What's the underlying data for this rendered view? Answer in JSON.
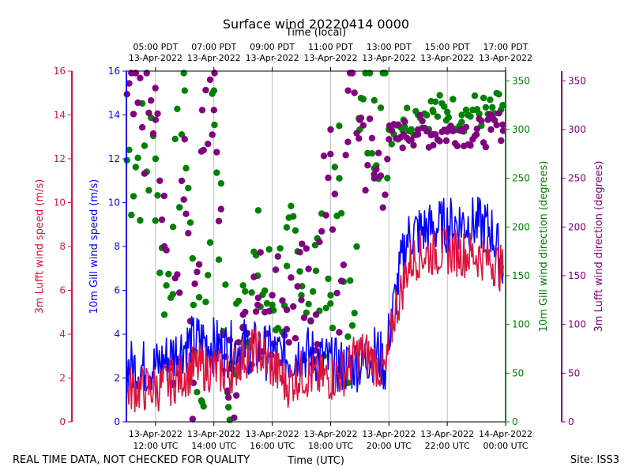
{
  "chart_data": {
    "type": "line+scatter",
    "title": "Surface wind 20220414 0000",
    "top_axis_label": "Time (local)",
    "xlabel": "Time (UTC)",
    "footer_left": "REAL TIME DATA, NOT CHECKED FOR QUALITY",
    "footer_right": "Site: ISS3",
    "xlim_hours_utc": [
      11.0,
      24.0
    ],
    "top_ticks": [
      {
        "h": 12,
        "line1": "05:00 PDT",
        "line2": "13-Apr-2022"
      },
      {
        "h": 14,
        "line1": "07:00 PDT",
        "line2": "13-Apr-2022"
      },
      {
        "h": 16,
        "line1": "09:00 PDT",
        "line2": "13-Apr-2022"
      },
      {
        "h": 18,
        "line1": "11:00 PDT",
        "line2": "13-Apr-2022"
      },
      {
        "h": 20,
        "line1": "13:00 PDT",
        "line2": "13-Apr-2022"
      },
      {
        "h": 22,
        "line1": "15:00 PDT",
        "line2": "13-Apr-2022"
      },
      {
        "h": 24,
        "line1": "17:00 PDT",
        "line2": "13-Apr-2022"
      }
    ],
    "bottom_ticks": [
      {
        "h": 12,
        "line1": "13-Apr-2022",
        "line2": "12:00 UTC"
      },
      {
        "h": 14,
        "line1": "13-Apr-2022",
        "line2": "14:00 UTC"
      },
      {
        "h": 16,
        "line1": "13-Apr-2022",
        "line2": "16:00 UTC"
      },
      {
        "h": 18,
        "line1": "13-Apr-2022",
        "line2": "18:00 UTC"
      },
      {
        "h": 20,
        "line1": "13-Apr-2022",
        "line2": "20:00 UTC"
      },
      {
        "h": 22,
        "line1": "13-Apr-2022",
        "line2": "22:00 UTC"
      },
      {
        "h": 24,
        "line1": "14-Apr-2022",
        "line2": "00:00 UTC"
      }
    ],
    "axes": {
      "lufft_speed": {
        "label": "3m Lufft wind speed (m/s)",
        "color": "#dc143c",
        "ylim": [
          0,
          16
        ],
        "ticks": [
          "0",
          "2",
          "4",
          "6",
          "8",
          "10",
          "12",
          "14",
          "16"
        ]
      },
      "gill_speed": {
        "label": "10m Gill wind speed (m/s)",
        "color": "#0000ff",
        "ylim": [
          0,
          16
        ],
        "ticks": [
          "0",
          "2",
          "4",
          "6",
          "8",
          "10",
          "12",
          "14",
          "16"
        ]
      },
      "gill_dir": {
        "label": "10m Gill wind direction (degrees)",
        "color": "#008000",
        "ylim": [
          0,
          360
        ],
        "ticks": [
          "0",
          "50",
          "100",
          "150",
          "200",
          "250",
          "300",
          "350"
        ]
      },
      "lufft_dir": {
        "label": "3m Lufft wind direction (degrees)",
        "color": "#800080",
        "ylim": [
          0,
          360
        ],
        "ticks": [
          "0",
          "50",
          "100",
          "150",
          "200",
          "250",
          "300",
          "350"
        ]
      }
    },
    "series": [
      {
        "name": "10m Gill wind speed",
        "kind": "line",
        "axis": "gill_speed",
        "x": [
          12.0,
          12.5,
          13.0,
          13.5,
          14.0,
          14.5,
          15.0,
          15.5,
          16.0,
          16.5,
          17.0,
          17.5,
          18.0,
          18.5,
          19.0,
          19.3,
          19.6,
          19.9,
          20.0,
          20.2,
          20.4,
          20.6,
          20.8,
          21.0,
          21.5,
          22.0,
          22.5,
          23.0,
          23.5,
          23.9
        ],
        "y": [
          2.5,
          3.0,
          3.5,
          3.7,
          3.5,
          3.3,
          3.5,
          3.3,
          3.1,
          2.9,
          3.2,
          3.0,
          2.6,
          2.5,
          2.7,
          3.0,
          3.2,
          2.4,
          4.0,
          5.5,
          7.0,
          8.3,
          8.6,
          8.7,
          8.8,
          9.0,
          9.1,
          9.0,
          8.8,
          7.2
        ]
      },
      {
        "name": "3m Lufft wind speed",
        "kind": "line",
        "axis": "lufft_speed",
        "x": [
          12.0,
          12.5,
          13.0,
          13.5,
          14.0,
          14.5,
          15.0,
          15.5,
          16.0,
          16.5,
          17.0,
          17.5,
          18.0,
          18.5,
          19.0,
          19.3,
          19.6,
          19.9,
          20.0,
          20.2,
          20.4,
          20.6,
          20.8,
          21.0,
          21.5,
          22.0,
          22.5,
          23.0,
          23.5,
          23.9
        ],
        "y": [
          1.5,
          1.8,
          2.2,
          2.5,
          2.4,
          2.2,
          3.0,
          3.3,
          2.5,
          1.7,
          2.2,
          2.0,
          2.0,
          2.3,
          3.2,
          3.0,
          2.6,
          2.2,
          3.5,
          5.0,
          5.8,
          6.9,
          7.4,
          7.6,
          7.7,
          7.8,
          7.7,
          7.6,
          7.4,
          6.9
        ]
      },
      {
        "name": "10m Gill wind direction",
        "kind": "scatter",
        "axis": "gill_dir",
        "x": [
          12.0,
          12.3,
          12.6,
          13.0,
          13.3,
          13.6,
          14.0,
          14.5,
          15.0,
          15.5,
          16.0,
          16.5,
          17.0,
          17.5,
          18.0,
          18.3,
          18.6,
          19.0,
          19.5,
          20.0,
          20.5,
          21.0,
          21.5,
          22.0,
          22.5,
          23.0,
          23.5,
          23.9
        ],
        "y": [
          270,
          110,
          200,
          340,
          120,
          20,
          340,
          15,
          140,
          150,
          120,
          160,
          130,
          155,
          130,
          250,
          40,
          300,
          330,
          300,
          310,
          315,
          320,
          318,
          315,
          320,
          315,
          325
        ]
      },
      {
        "name": "3m Lufft wind direction",
        "kind": "scatter",
        "axis": "lufft_dir",
        "x": [
          12.0,
          12.3,
          12.6,
          13.0,
          13.3,
          13.6,
          14.0,
          14.5,
          15.0,
          15.5,
          16.0,
          16.5,
          17.0,
          17.5,
          18.0,
          18.3,
          18.6,
          19.0,
          19.5,
          20.0,
          20.5,
          21.0,
          21.5,
          22.0,
          22.5,
          23.0,
          23.5,
          23.9
        ],
        "y": [
          310,
          180,
          40,
          290,
          40,
          320,
          320,
          25,
          110,
          120,
          130,
          115,
          125,
          110,
          300,
          50,
          340,
          310,
          250,
          290,
          295,
          300,
          295,
          298,
          300,
          295,
          300,
          305
        ]
      }
    ]
  }
}
